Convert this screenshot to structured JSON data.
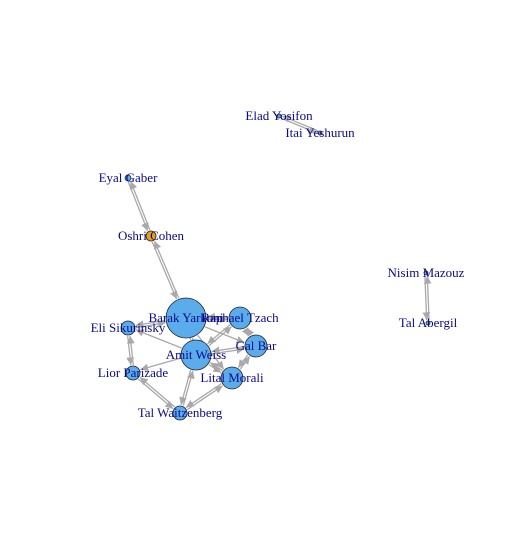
{
  "graph": {
    "colors": {
      "node_default": "#5aacea",
      "node_highlight": "#e8a20f",
      "edge": "#a9a9a9",
      "label": "#0a0a8c",
      "node_stroke": "#222222"
    },
    "nodes": [
      {
        "id": "barak",
        "label": "Barak Yarkoni",
        "color": "node_default"
      },
      {
        "id": "amit",
        "label": "Amit Weiss",
        "color": "node_default"
      },
      {
        "id": "raphael",
        "label": "Raphael Tzach",
        "color": "node_default"
      },
      {
        "id": "gal",
        "label": "Gal Bar",
        "color": "node_default"
      },
      {
        "id": "lital",
        "label": "Lital Morali",
        "color": "node_default"
      },
      {
        "id": "eli",
        "label": "Eli Sikurinsky",
        "color": "node_default"
      },
      {
        "id": "lior",
        "label": "Lior Parizade",
        "color": "node_default"
      },
      {
        "id": "tal_w",
        "label": "Tal Waitzenberg",
        "color": "node_default"
      },
      {
        "id": "oshri",
        "label": "Oshri Cohen",
        "color": "node_highlight"
      },
      {
        "id": "eyal",
        "label": "Eyal Gaber",
        "color": "node_default"
      },
      {
        "id": "elad",
        "label": "Elad Yosifon",
        "color": "node_default"
      },
      {
        "id": "itai",
        "label": "Itai Yeshurun",
        "color": "node_default"
      },
      {
        "id": "nisim",
        "label": "Nisim Mazouz",
        "color": "node_default"
      },
      {
        "id": "tal_a",
        "label": "Tal Abergil",
        "color": "node_default"
      }
    ],
    "edges": [
      {
        "from": "eyal",
        "to": "oshri"
      },
      {
        "from": "oshri",
        "to": "eyal"
      },
      {
        "from": "oshri",
        "to": "barak"
      },
      {
        "from": "barak",
        "to": "oshri"
      },
      {
        "from": "elad",
        "to": "itai"
      },
      {
        "from": "itai",
        "to": "elad"
      },
      {
        "from": "nisim",
        "to": "tal_a"
      },
      {
        "from": "tal_a",
        "to": "nisim"
      },
      {
        "from": "barak",
        "to": "raphael"
      },
      {
        "from": "raphael",
        "to": "barak"
      },
      {
        "from": "barak",
        "to": "amit"
      },
      {
        "from": "amit",
        "to": "barak"
      },
      {
        "from": "barak",
        "to": "eli"
      },
      {
        "from": "eli",
        "to": "barak"
      },
      {
        "from": "barak",
        "to": "gal"
      },
      {
        "from": "barak",
        "to": "lital"
      },
      {
        "from": "amit",
        "to": "raphael"
      },
      {
        "from": "raphael",
        "to": "amit"
      },
      {
        "from": "amit",
        "to": "gal"
      },
      {
        "from": "gal",
        "to": "amit"
      },
      {
        "from": "amit",
        "to": "lital"
      },
      {
        "from": "lital",
        "to": "amit"
      },
      {
        "from": "amit",
        "to": "lior"
      },
      {
        "from": "amit",
        "to": "tal_w"
      },
      {
        "from": "tal_w",
        "to": "amit"
      },
      {
        "from": "amit",
        "to": "eli"
      },
      {
        "from": "raphael",
        "to": "gal"
      },
      {
        "from": "gal",
        "to": "raphael"
      },
      {
        "from": "gal",
        "to": "lital"
      },
      {
        "from": "lital",
        "to": "gal"
      },
      {
        "from": "lital",
        "to": "tal_w"
      },
      {
        "from": "tal_w",
        "to": "lital"
      },
      {
        "from": "lior",
        "to": "tal_w"
      },
      {
        "from": "tal_w",
        "to": "lior"
      },
      {
        "from": "eli",
        "to": "lior"
      },
      {
        "from": "lior",
        "to": "eli"
      }
    ]
  }
}
